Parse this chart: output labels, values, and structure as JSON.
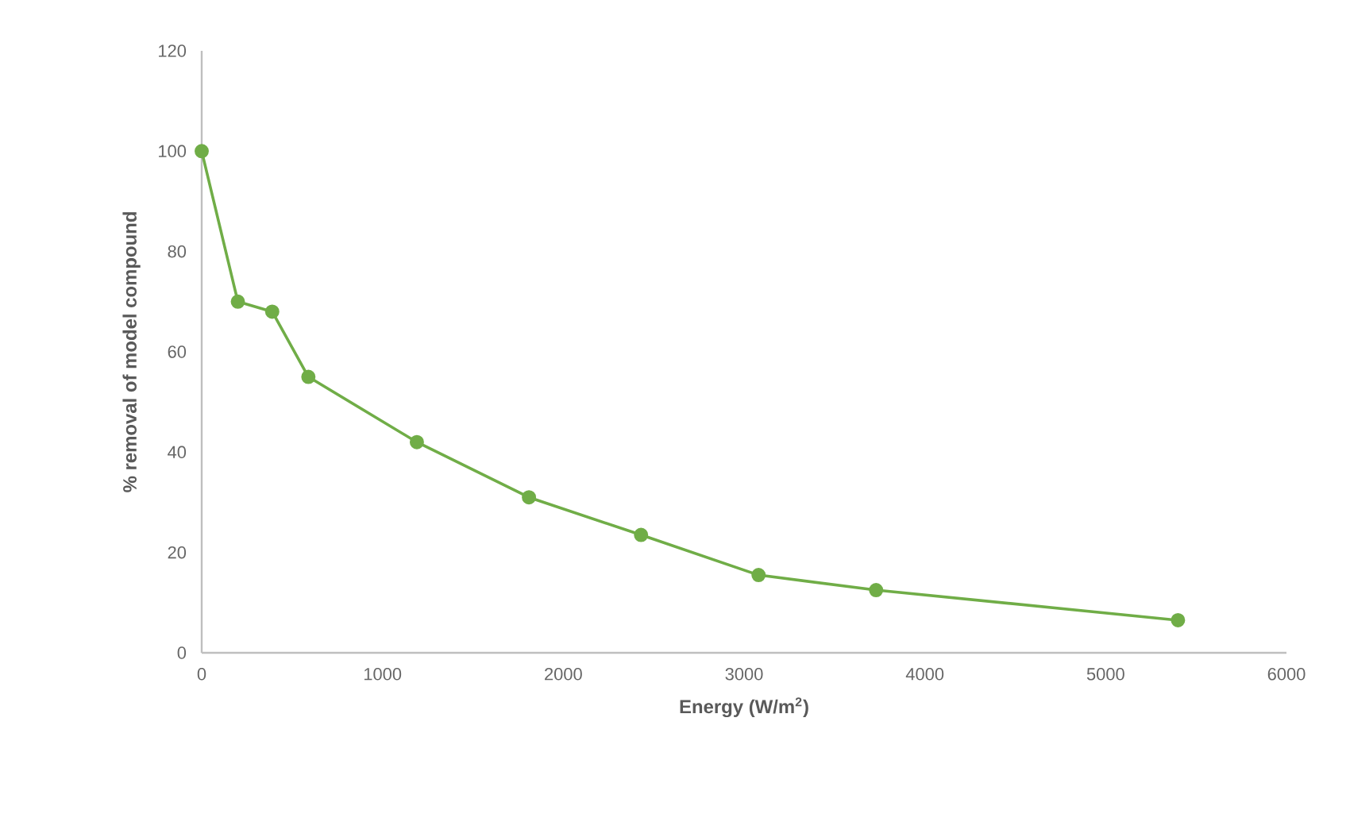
{
  "chart_data": {
    "type": "line",
    "xlabel": "Energy (W/m$^{2}$)",
    "ylabel": "% removal of model compound",
    "x": [
      0,
      200,
      390,
      590,
      1190,
      1810,
      2430,
      3080,
      3730,
      5400
    ],
    "series": [
      {
        "color": "#70ad47",
        "values": [
          100,
          70,
          68,
          55,
          42,
          31,
          23.5,
          15.5,
          12.5,
          6.5
        ]
      }
    ],
    "xlim": [
      0,
      6000
    ],
    "ylim": [
      0,
      120
    ],
    "xticks": [
      0,
      1000,
      2000,
      3000,
      4000,
      5000,
      6000
    ],
    "yticks": [
      0,
      20,
      40,
      60,
      80,
      100,
      120
    ],
    "grid": false,
    "marker": "circle",
    "line_style": "solid"
  }
}
